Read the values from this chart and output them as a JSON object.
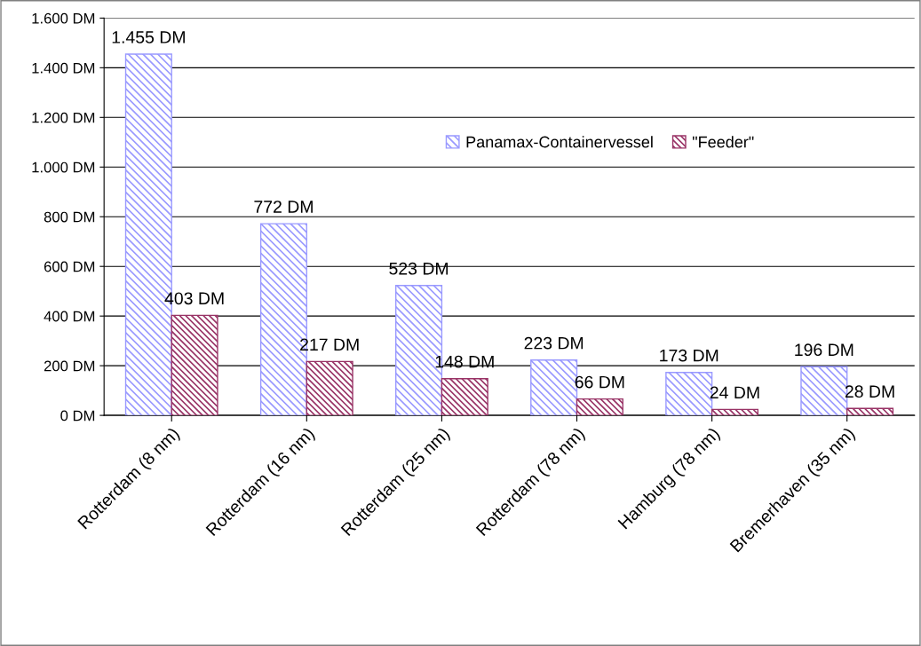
{
  "chart_data": {
    "type": "bar",
    "categories": [
      "Rotterdam (8 nm)",
      "Rotterdam (16 nm)",
      "Rotterdam (25 nm)",
      "Rotterdam (78 nm)",
      "Hamburg (78 nm)",
      "Bremerhaven (35 nm)"
    ],
    "series": [
      {
        "name": "Panamax-Containervessel",
        "color": "#9999ff",
        "values": [
          1455,
          772,
          523,
          223,
          173,
          196
        ],
        "value_labels": [
          "1.455 DM",
          "772 DM",
          "523 DM",
          "223 DM",
          "173 DM",
          "196 DM"
        ]
      },
      {
        "name": "\"Feeder\"",
        "color": "#993366",
        "values": [
          403,
          217,
          148,
          66,
          24,
          28
        ],
        "value_labels": [
          "403 DM",
          "217 DM",
          "148 DM",
          "66 DM",
          "24 DM",
          "28 DM"
        ]
      }
    ],
    "ylim": [
      0,
      1600
    ],
    "yticks": [
      {
        "value": 0,
        "label": "0 DM"
      },
      {
        "value": 200,
        "label": "200 DM"
      },
      {
        "value": 400,
        "label": "400 DM"
      },
      {
        "value": 600,
        "label": "600 DM"
      },
      {
        "value": 800,
        "label": "800 DM"
      },
      {
        "value": 1000,
        "label": "1.000 DM"
      },
      {
        "value": 1200,
        "label": "1.200 DM"
      },
      {
        "value": 1400,
        "label": "1.400 DM"
      },
      {
        "value": 1600,
        "label": "1.600 DM"
      }
    ],
    "grid": "y",
    "legend": "top right"
  }
}
